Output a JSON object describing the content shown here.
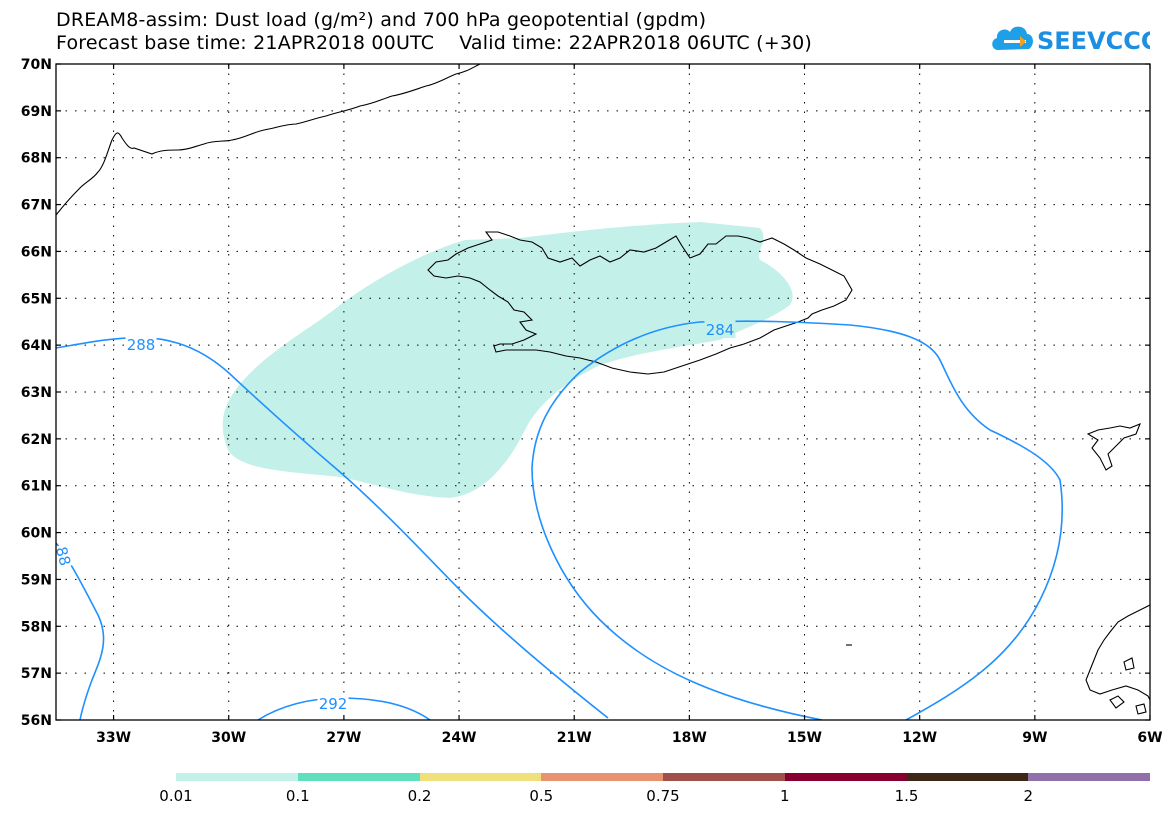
{
  "title": {
    "line1": "DREAM8-assim: Dust load (g/m²) and 700 hPa geopotential (gpdm)",
    "line2_left": "Forecast base time: 21APR2018 00UTC",
    "line2_right": "Valid time: 22APR2018 06UTC (+30)"
  },
  "logo": {
    "text": "SEEVCCC",
    "icon": "cloud-icon"
  },
  "map": {
    "lat_labels": [
      "70N",
      "69N",
      "68N",
      "67N",
      "66N",
      "65N",
      "64N",
      "63N",
      "62N",
      "61N",
      "60N",
      "59N",
      "58N",
      "57N",
      "56N"
    ],
    "lon_labels": [
      "33W",
      "30W",
      "27W",
      "24W",
      "21W",
      "18W",
      "15W",
      "12W",
      "9W",
      "6W"
    ],
    "lat_range": [
      56,
      70
    ],
    "lon_range": [
      -34.5,
      -6
    ],
    "grid": "dotted",
    "contour_labels": [
      "288",
      "284",
      "292",
      "88"
    ],
    "contour_color": "#1e90ff",
    "dust_fill_color": "#c4f0ea",
    "coastline_color": "#000000"
  },
  "colorbar": {
    "labels": [
      "0.01",
      "0.1",
      "0.2",
      "0.5",
      "0.75",
      "1",
      "1.5",
      "2"
    ],
    "colors": [
      "#c4f0ea",
      "#5ee0bf",
      "#f0e07c",
      "#e89270",
      "#a05048",
      "#880030",
      "#3c2814",
      "#9070a8"
    ]
  }
}
